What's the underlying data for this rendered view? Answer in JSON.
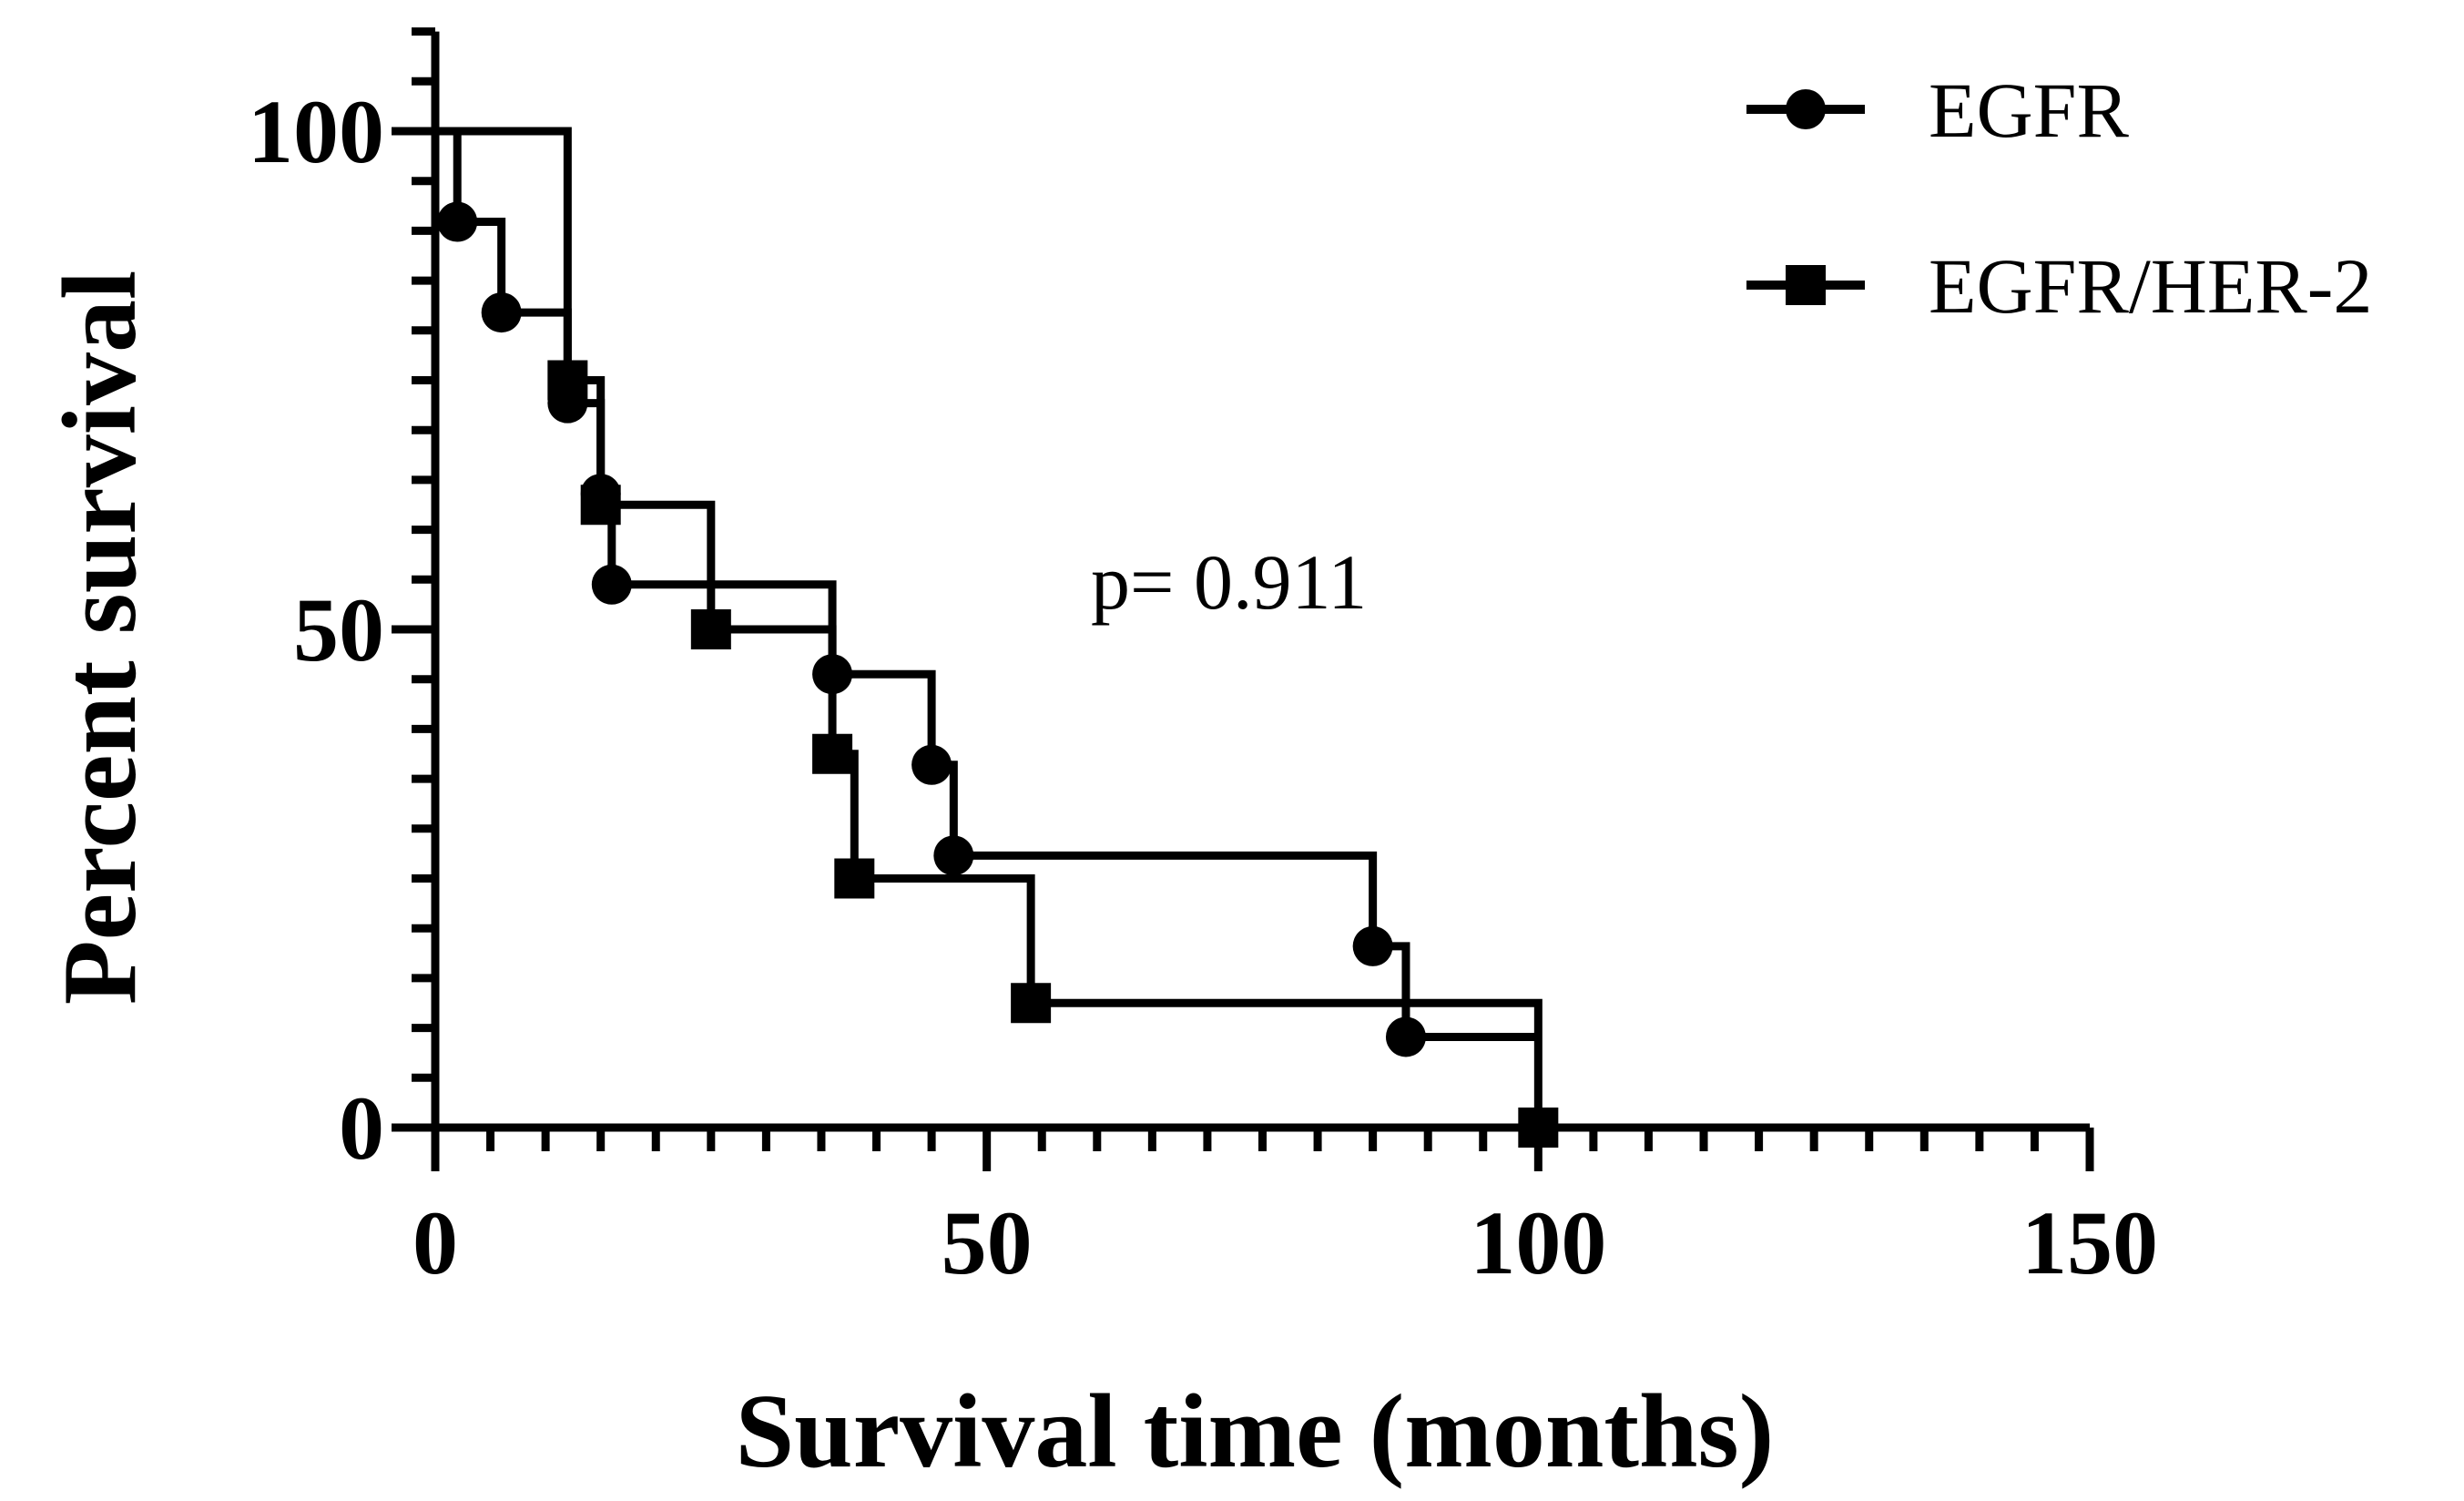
{
  "chart_data": {
    "type": "line",
    "subtype": "kaplan-meier",
    "title": "",
    "xlabel": "Survival time (months)",
    "ylabel": "Percent survival",
    "xlim": [
      0,
      150
    ],
    "ylim": [
      0,
      110
    ],
    "x_ticks": [
      0,
      50,
      100,
      150
    ],
    "y_ticks": [
      0,
      50,
      100
    ],
    "grid": false,
    "legend_position": "top-right",
    "annotation": "p= 0.911",
    "series": [
      {
        "name": "EGFR",
        "marker": "circle",
        "steps": [
          [
            0,
            100
          ],
          [
            2,
            90.9
          ],
          [
            6,
            81.8
          ],
          [
            12,
            72.7
          ],
          [
            15,
            63.6
          ],
          [
            16,
            54.5
          ],
          [
            36,
            45.5
          ],
          [
            45,
            36.4
          ],
          [
            47,
            27.3
          ],
          [
            85,
            18.2
          ],
          [
            88,
            9.1
          ],
          [
            100,
            9.1
          ]
        ],
        "events": [
          [
            2,
            90.9
          ],
          [
            6,
            81.8
          ],
          [
            12,
            72.7
          ],
          [
            15,
            63.6
          ],
          [
            16,
            54.5
          ],
          [
            36,
            45.5
          ],
          [
            45,
            36.4
          ],
          [
            47,
            27.3
          ],
          [
            85,
            18.2
          ],
          [
            88,
            9.1
          ]
        ]
      },
      {
        "name": "EGFR/HER-2",
        "marker": "square",
        "steps": [
          [
            0,
            100
          ],
          [
            12,
            75
          ],
          [
            15,
            62.5
          ],
          [
            25,
            50
          ],
          [
            36,
            37.5
          ],
          [
            38,
            25
          ],
          [
            54,
            12.5
          ],
          [
            100,
            0
          ]
        ],
        "events": [
          [
            12,
            75
          ],
          [
            15,
            62.5
          ],
          [
            25,
            50
          ],
          [
            36,
            37.5
          ],
          [
            38,
            25
          ],
          [
            54,
            12.5
          ],
          [
            100,
            0
          ]
        ]
      }
    ]
  }
}
